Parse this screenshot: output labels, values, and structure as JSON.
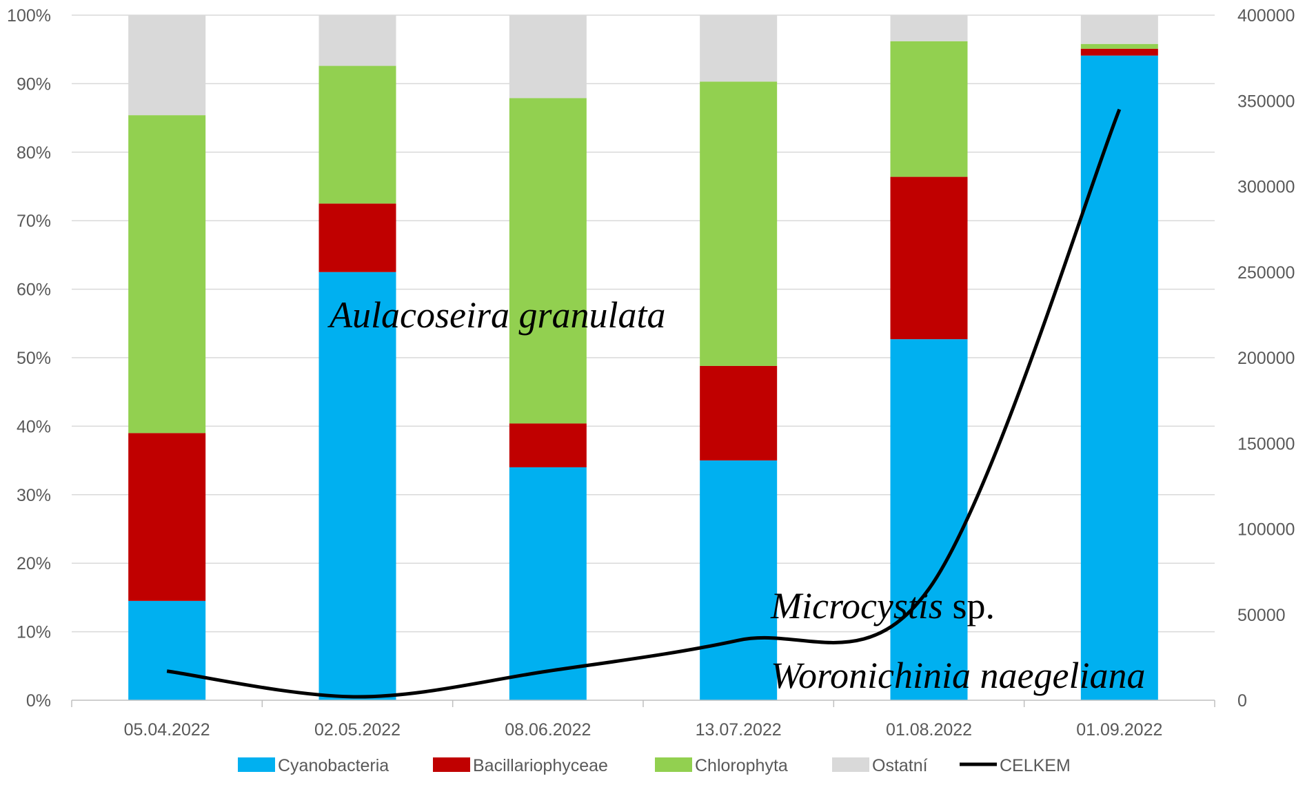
{
  "chart_data": {
    "type": "bar",
    "stacked": "percent",
    "categories": [
      "05.04.2022",
      "02.05.2022",
      "08.06.2022",
      "13.07.2022",
      "01.08.2022",
      "01.09.2022"
    ],
    "series": [
      {
        "name": "Cyanobacteria",
        "color": "#00B0F0",
        "values": [
          14.5,
          62.5,
          34,
          35,
          52.7,
          94.1
        ]
      },
      {
        "name": "Bacillariophyceae",
        "color": "#C00000",
        "values": [
          24.5,
          10,
          6.4,
          13.8,
          23.7,
          1.0
        ]
      },
      {
        "name": "Chlorophyta",
        "color": "#92D050",
        "values": [
          46.4,
          20.1,
          47.5,
          41.5,
          19.8,
          0.7
        ]
      },
      {
        "name": "Ostatní",
        "color": "#D9D9D9",
        "values": [
          14.6,
          7.4,
          12.1,
          9.7,
          3.8,
          4.2
        ]
      }
    ],
    "line": {
      "name": "CELKEM",
      "color": "#000000",
      "values": [
        17000,
        2000,
        17000,
        35000,
        65000,
        345000
      ]
    },
    "y_left": {
      "ticks": [
        "0%",
        "10%",
        "20%",
        "30%",
        "40%",
        "50%",
        "60%",
        "70%",
        "80%",
        "90%",
        "100%"
      ],
      "ylim": [
        0,
        100
      ]
    },
    "y_right": {
      "ticks": [
        "0",
        "50000",
        "100000",
        "150000",
        "200000",
        "250000",
        "300000",
        "350000",
        "400000"
      ],
      "ylim": [
        0,
        400000
      ]
    },
    "grid": true,
    "legend_position": "bottom",
    "annotations": {
      "aulacoseira": "Aulacoseira granulata",
      "microcystis_italic": "Microcystis",
      "microcystis_suffix": " sp.",
      "woronichinia": "Woronichinia naegeliana"
    }
  }
}
